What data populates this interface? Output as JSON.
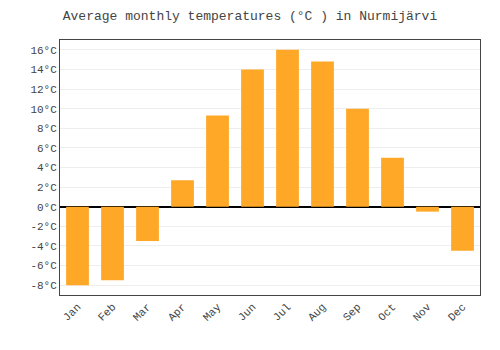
{
  "chart_data": {
    "type": "bar",
    "title": "Average monthly temperatures (°C ) in Nurmijärvi",
    "categories": [
      "Jan",
      "Feb",
      "Mar",
      "Apr",
      "May",
      "Jun",
      "Jul",
      "Aug",
      "Sep",
      "Oct",
      "Nov",
      "Dec"
    ],
    "values": [
      -8,
      -7.5,
      -3.5,
      2.7,
      9.3,
      14.0,
      16.0,
      14.8,
      10.0,
      5.0,
      -0.5,
      -4.5
    ],
    "color": "#FFA726",
    "ylim": [
      -9,
      17
    ],
    "yticks": [
      {
        "value": -8,
        "label": "-8°C"
      },
      {
        "value": -6,
        "label": "-6°C"
      },
      {
        "value": -4,
        "label": "-4°C"
      },
      {
        "value": -2,
        "label": "-2°C"
      },
      {
        "value": 0,
        "label": "0°C"
      },
      {
        "value": 2,
        "label": "2°C"
      },
      {
        "value": 4,
        "label": "4°C"
      },
      {
        "value": 6,
        "label": "6°C"
      },
      {
        "value": 8,
        "label": "8°C"
      },
      {
        "value": 10,
        "label": "10°C"
      },
      {
        "value": 12,
        "label": "12°C"
      },
      {
        "value": 14,
        "label": "14°C"
      },
      {
        "value": 16,
        "label": "16°C"
      }
    ],
    "grid": true
  }
}
